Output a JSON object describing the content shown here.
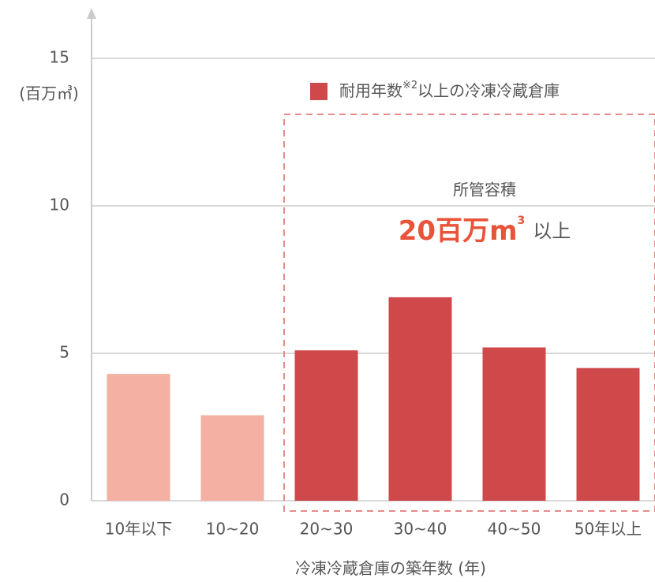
{
  "chart_data": {
    "type": "bar",
    "y_unit_label": "(百万㎥)",
    "x_axis_label": "冷凍冷蔵倉庫の築年数 (年)",
    "categories": [
      "10年以下",
      "10~20",
      "20~30",
      "30~40",
      "40~50",
      "50年以上"
    ],
    "values": [
      4.3,
      2.9,
      5.1,
      6.9,
      5.2,
      4.5
    ],
    "colors": [
      "#f4b0a2",
      "#f4b0a2",
      "#d0494a",
      "#d0494a",
      "#d0494a",
      "#d0494a"
    ],
    "legend": {
      "color": "#d0494a",
      "text": "耐用年数",
      "superscript": "※2",
      "text_after": "以上の冷凍冷蔵倉庫"
    },
    "annotation": {
      "line1": "所管容積",
      "big": "20百万m",
      "big_sup": "3",
      "suffix": "以上"
    },
    "ylim": [
      0,
      15
    ],
    "yticks": [
      0,
      5,
      10,
      15
    ],
    "grid": true
  }
}
